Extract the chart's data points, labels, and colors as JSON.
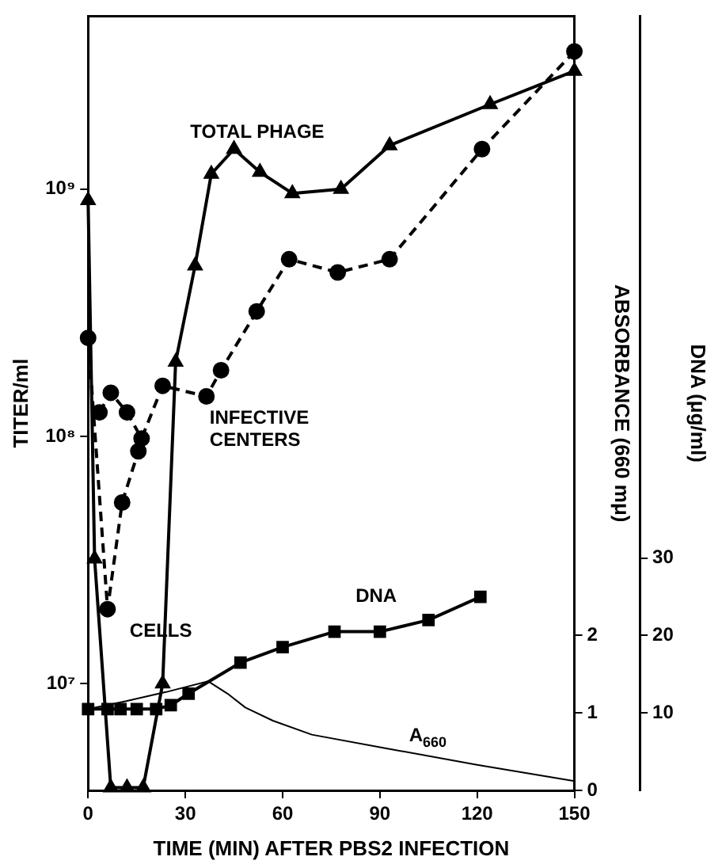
{
  "chart_data": {
    "type": "line",
    "xlabel": "TIME (MIN) AFTER PBS2 INFECTION",
    "ylabel": "TITER/ml",
    "y2label": "ABSORBANCE (660 mμ)",
    "y3label": "DNA (μg/ml)",
    "log": "y",
    "grid": false,
    "legend": false,
    "xlim": [
      0,
      150
    ],
    "xticks": [
      0,
      30,
      60,
      90,
      120,
      150
    ],
    "ylim": [
      3700000,
      5000000000
    ],
    "yticks": [
      {
        "value": 10000000,
        "label": "10⁷"
      },
      {
        "value": 100000000,
        "label": "10⁸"
      },
      {
        "value": 1000000000,
        "label": "10⁹"
      }
    ],
    "y2lim": [
      0,
      10
    ],
    "y2ticks": [
      0,
      1,
      2
    ],
    "y3lim": [
      0,
      100
    ],
    "y3ticks": [
      10,
      20,
      30
    ],
    "series": [
      {
        "color": "#000000",
        "marker": "triangle",
        "line_style": "solid",
        "x": [
          0,
          2,
          7,
          12,
          17,
          23,
          27,
          33,
          38,
          45,
          53,
          63,
          78,
          93,
          124,
          150
        ],
        "values": [
          900000000,
          32000000,
          3800000,
          3800000,
          3800000,
          10000000,
          200000000,
          490000000,
          1150000000,
          1450000000,
          1170000000,
          960000000,
          1000000000,
          1500000000,
          2200000000,
          3000000000
        ]
      },
      {
        "color": "#000000",
        "marker": "circle",
        "line_style": "dashed",
        "x": [
          3.5,
          7,
          12,
          16.5,
          23,
          36.5,
          41,
          52,
          62,
          77,
          93,
          121.5,
          150
        ],
        "values": [
          125000000,
          150000000,
          125000000,
          98000000,
          160000000,
          145000000,
          185000000,
          320000000,
          520000000,
          460000000,
          520000000,
          1450000000,
          3600000000
        ]
      },
      {
        "color": "#000000",
        "marker": "circle",
        "line_style": "dashed",
        "x": [
          0,
          6,
          10.5,
          15.5
        ],
        "values": [
          250000000,
          20000000,
          54000000,
          87000000
        ]
      },
      {
        "color": "#000000",
        "marker": "square",
        "line_style": "solid",
        "axis": "y3",
        "x": [
          0,
          6,
          10,
          15,
          21,
          25.5,
          31,
          47,
          60,
          76,
          90,
          105,
          121
        ],
        "values": [
          10.5,
          10.5,
          10.5,
          10.5,
          10.5,
          11,
          12.5,
          16.5,
          18.5,
          20.5,
          20.5,
          22,
          25
        ]
      },
      {
        "color": "#000000",
        "marker": "none",
        "line_style": "solid",
        "axis": "y2",
        "x": [
          0,
          11.5,
          24,
          37,
          43,
          48.5,
          57,
          69,
          91,
          120,
          150
        ],
        "values": [
          1.05,
          1.15,
          1.27,
          1.41,
          1.25,
          1.07,
          0.9,
          0.72,
          0.55,
          0.33,
          0.12
        ]
      }
    ],
    "annotations": [
      "TOTAL PHAGE",
      "INFECTIVE\nCENTERS",
      {
        "text": "CELLS",
        "x": 6,
        "y": 20000000
      },
      "DNA",
      "A$_{660}$"
    ]
  }
}
